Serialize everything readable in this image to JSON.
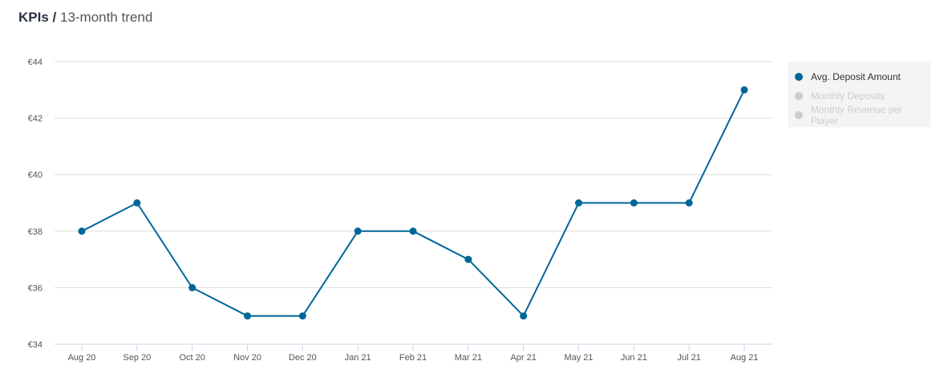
{
  "header": {
    "title_bold": "KPIs /",
    "title_rest": "13-month trend"
  },
  "chart_data": {
    "type": "line",
    "categories": [
      "Aug 20",
      "Sep 20",
      "Oct 20",
      "Nov 20",
      "Dec 20",
      "Jan 21",
      "Feb 21",
      "Mar 21",
      "Apr 21",
      "May 21",
      "Jun 21",
      "Jul 21",
      "Aug 21"
    ],
    "series": [
      {
        "name": "Avg. Deposit Amount",
        "values": [
          38,
          39,
          36,
          35,
          35,
          38,
          38,
          37,
          35,
          39,
          39,
          39,
          43
        ],
        "color": "#006699"
      }
    ],
    "ylim": [
      34,
      44
    ],
    "yticks": [
      34,
      36,
      38,
      40,
      42,
      44
    ],
    "ytick_prefix": "€",
    "grid": true,
    "legend_placement": "right",
    "legend": [
      {
        "label": "Avg. Deposit Amount",
        "active": true,
        "color": "#006699"
      },
      {
        "label": "Monthly Deposits",
        "active": false,
        "color": "#cccccc"
      },
      {
        "label": "Monthly Revenue per Player",
        "active": false,
        "color": "#cccccc"
      }
    ]
  }
}
